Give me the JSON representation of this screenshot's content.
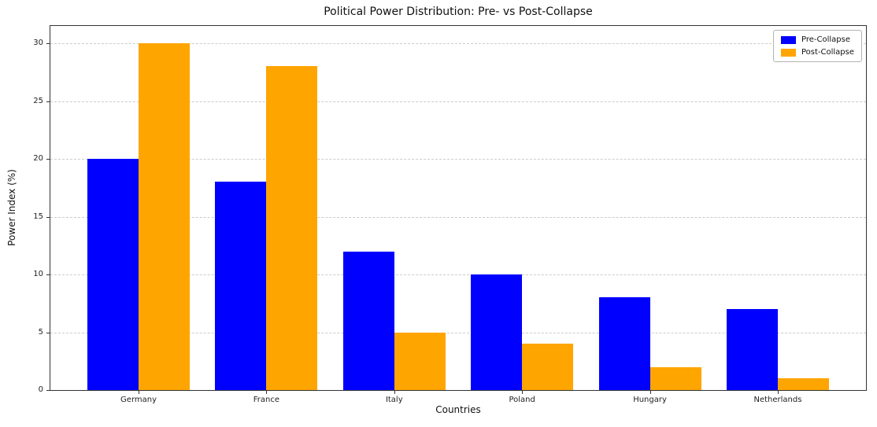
{
  "chart_data": {
    "type": "bar",
    "title": "Political Power Distribution: Pre- vs Post-Collapse",
    "xlabel": "Countries",
    "ylabel": "Power Index (%)",
    "categories": [
      "Germany",
      "France",
      "Italy",
      "Poland",
      "Hungary",
      "Netherlands"
    ],
    "series": [
      {
        "name": "Pre-Collapse",
        "color": "#0000ff",
        "values": [
          20,
          18,
          12,
          10,
          8,
          7
        ]
      },
      {
        "name": "Post-Collapse",
        "color": "#ffa500",
        "values": [
          30,
          28,
          5,
          4,
          2,
          1
        ]
      }
    ],
    "yticks": [
      0,
      5,
      10,
      15,
      20,
      25,
      30
    ],
    "ylim": [
      0,
      31.5
    ],
    "xlim": [
      -0.69,
      5.69
    ],
    "bar_width": 0.4,
    "grid": "dashed-horizontal",
    "legend_position": "upper-right",
    "colors": {
      "background": "#ffffff",
      "gridline": "#cccccc",
      "axis": "#333333"
    }
  }
}
